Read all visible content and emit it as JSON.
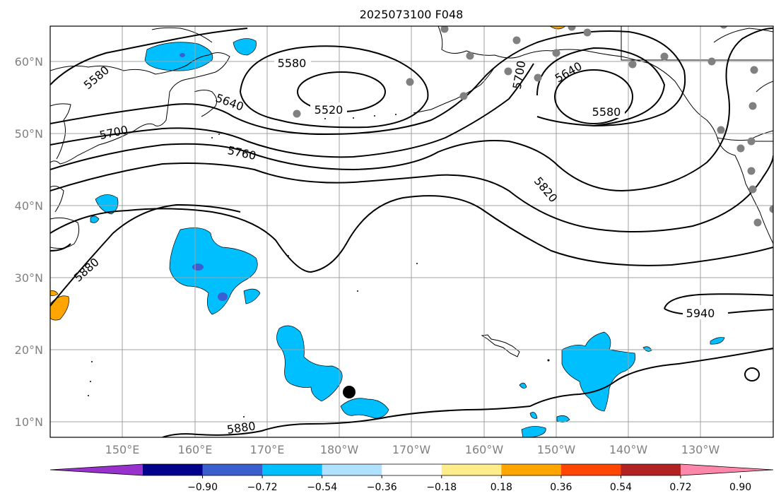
{
  "title": "2025073100 F048",
  "map": {
    "lat_labels": [
      "60°N",
      "50°N",
      "40°N",
      "30°N",
      "20°N",
      "10°N"
    ],
    "lon_labels": [
      "150°E",
      "160°E",
      "170°E",
      "180°W",
      "170°W",
      "160°W",
      "150°W",
      "140°W",
      "130°W"
    ],
    "contour_labels": [
      "5580",
      "5520",
      "5640",
      "5700",
      "5760",
      "5820",
      "5880",
      "5940",
      "5580",
      "5640",
      "5700",
      "5580",
      "5880"
    ],
    "colors": {
      "contour": "#000000",
      "grid": "#a0a0a0",
      "coastline": "#000000",
      "negative_shade": "#00bfff",
      "strong_negative_shade": "#3a5fd0",
      "positive_shade": "#ffa500",
      "station_dot": "#808080",
      "marker_dot": "#000000"
    }
  },
  "colorbar": {
    "ticks": [
      "−0.90",
      "−0.72",
      "−0.54",
      "−0.36",
      "−0.18",
      "0.18",
      "0.36",
      "0.54",
      "0.72",
      "0.90"
    ],
    "colors": [
      "#9932cc",
      "#00008b",
      "#3a5fcd",
      "#00bfff",
      "#b0e2ff",
      "#ffffff",
      "#ffec8b",
      "#ffa500",
      "#ff4500",
      "#b22222",
      "#ff88aa"
    ]
  }
}
